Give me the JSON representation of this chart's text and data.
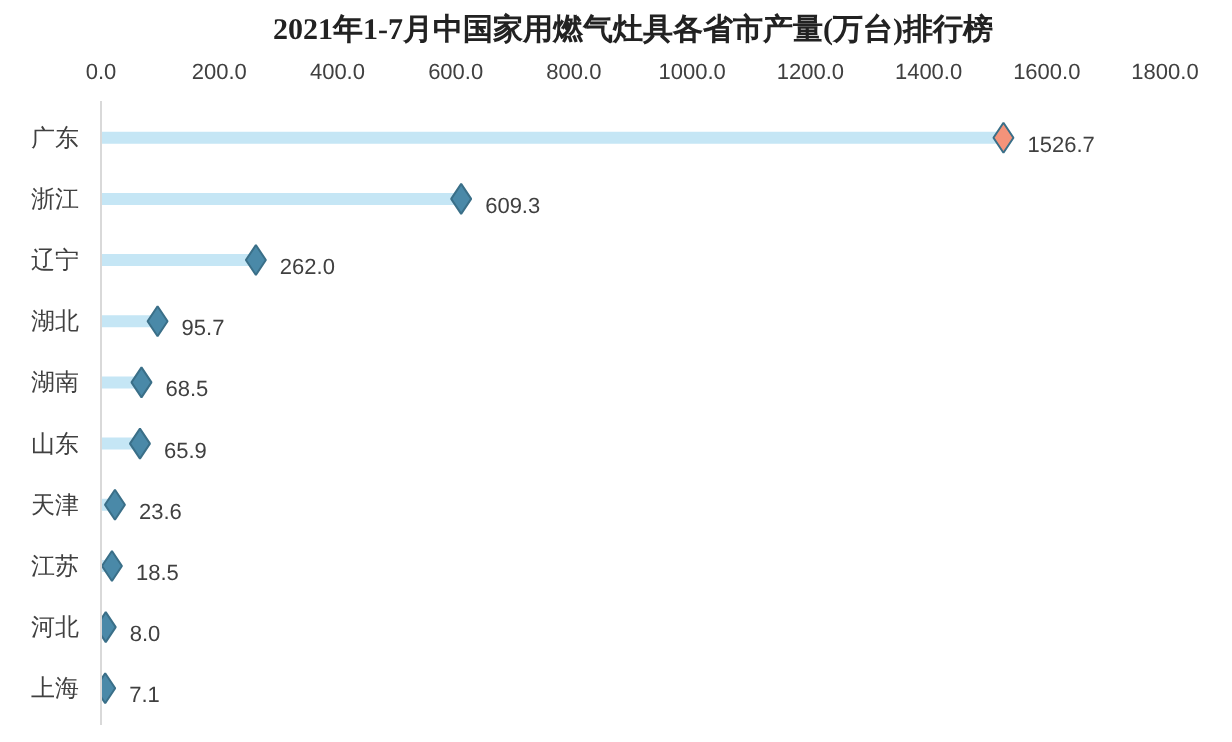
{
  "chart_data": {
    "type": "lollipop",
    "orientation": "horizontal",
    "title": "2021年1-7月中国家用燃气灶具各省市产量(万台)排行榜",
    "categories": [
      "广东",
      "浙江",
      "辽宁",
      "湖北",
      "湖南",
      "山东",
      "天津",
      "江苏",
      "河北",
      "上海"
    ],
    "values": [
      1526.7,
      609.3,
      262.0,
      95.7,
      68.5,
      65.9,
      23.6,
      18.5,
      8.0,
      7.1
    ],
    "value_labels": [
      "1526.7",
      "609.3",
      "262.0",
      "95.7",
      "68.5",
      "65.9",
      "23.6",
      "18.5",
      "8.0",
      "7.1"
    ],
    "color": "#c5e6f5",
    "colors": [
      "#f4937a",
      "#4a89a8",
      "#4a89a8",
      "#4a89a8",
      "#4a89a8",
      "#4a89a8",
      "#4a89a8",
      "#4a89a8",
      "#4a89a8",
      "#4a89a8"
    ],
    "marker": "diamond",
    "grid": false,
    "xlim": [
      0,
      1800
    ],
    "xticks": [
      {
        "value": 0,
        "label": "0.0"
      },
      {
        "value": 200,
        "label": "200.0"
      },
      {
        "value": 400,
        "label": "400.0"
      },
      {
        "value": 600,
        "label": "600.0"
      },
      {
        "value": 800,
        "label": "800.0"
      },
      {
        "value": 1000,
        "label": "1000.0"
      },
      {
        "value": 1200,
        "label": "1200.0"
      },
      {
        "value": 1400,
        "label": "1400.0"
      },
      {
        "value": 1600,
        "label": "1600.0"
      },
      {
        "value": 1800,
        "label": "1800.0"
      }
    ]
  }
}
